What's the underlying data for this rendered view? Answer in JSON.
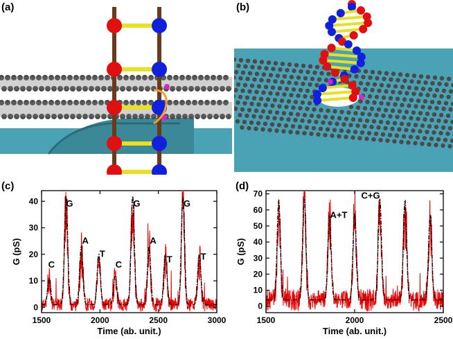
{
  "panels": {
    "a": {
      "label": "(a)"
    },
    "b": {
      "label": "(b)"
    },
    "c": {
      "label": "(c)"
    },
    "d": {
      "label": "(d)"
    }
  },
  "colors": {
    "noisy_trace": "#ee0000",
    "envelope": "#000000",
    "surface": "#4aa3b5",
    "carbon": "#4a4a4a",
    "base_red": "#e01010",
    "base_blue": "#1020dd",
    "rung": "#e8e020",
    "backbone": "#6b3a1a",
    "marker": "#e020c8"
  },
  "chart_data": [
    {
      "type": "line",
      "panel": "(c)",
      "xlabel": "Time (ab. unit.)",
      "ylabel": "G (pS)",
      "xlim": [
        1500,
        3000
      ],
      "ylim": [
        -2,
        44
      ],
      "xticks": [
        1500,
        2000,
        2500,
        3000
      ],
      "yticks": [
        0,
        10,
        20,
        30,
        40
      ],
      "grid": false,
      "series": [
        {
          "style": "dash-dot black",
          "peaks": [
            {
              "x": 1565,
              "y": 11
            },
            {
              "x": 1710,
              "y": 42
            },
            {
              "x": 1840,
              "y": 23
            },
            {
              "x": 1990,
              "y": 20
            },
            {
              "x": 2130,
              "y": 12
            },
            {
              "x": 2280,
              "y": 42
            },
            {
              "x": 2420,
              "y": 23
            },
            {
              "x": 2560,
              "y": 20
            },
            {
              "x": 2710,
              "y": 42
            },
            {
              "x": 2850,
              "y": 20
            }
          ],
          "baseline": 1
        }
      ],
      "annotations": [
        {
          "text": "C",
          "x": 1585,
          "y": 15
        },
        {
          "text": "G",
          "x": 1740,
          "y": 38
        },
        {
          "text": "A",
          "x": 1875,
          "y": 24
        },
        {
          "text": "T",
          "x": 2020,
          "y": 19
        },
        {
          "text": "C",
          "x": 2160,
          "y": 15
        },
        {
          "text": "G",
          "x": 2315,
          "y": 38
        },
        {
          "text": "A",
          "x": 2455,
          "y": 24
        },
        {
          "text": "T",
          "x": 2595,
          "y": 17
        },
        {
          "text": "G",
          "x": 2745,
          "y": 38
        },
        {
          "text": "T",
          "x": 2885,
          "y": 18
        }
      ]
    },
    {
      "type": "line",
      "panel": "(d)",
      "xlabel": "Time (ab. unit.)",
      "ylabel": "G (pS)",
      "xlim": [
        1500,
        2500
      ],
      "ylim": [
        -4,
        72
      ],
      "xticks": [
        1500,
        2000,
        2500
      ],
      "yticks": [
        0,
        10,
        20,
        30,
        40,
        50,
        60,
        70
      ],
      "grid": false,
      "series": [
        {
          "style": "dash-dot black",
          "peaks": [
            {
              "x": 1572,
              "y": 66
            },
            {
              "x": 1716,
              "y": 67
            },
            {
              "x": 1858,
              "y": 57
            },
            {
              "x": 2000,
              "y": 58
            },
            {
              "x": 2142,
              "y": 67
            },
            {
              "x": 2284,
              "y": 66
            },
            {
              "x": 2426,
              "y": 57
            }
          ],
          "baseline": 4
        }
      ],
      "annotations": [
        {
          "text": "A+T",
          "x": 1910,
          "y": 55
        },
        {
          "text": "C+G",
          "x": 2090,
          "y": 67
        }
      ]
    }
  ]
}
